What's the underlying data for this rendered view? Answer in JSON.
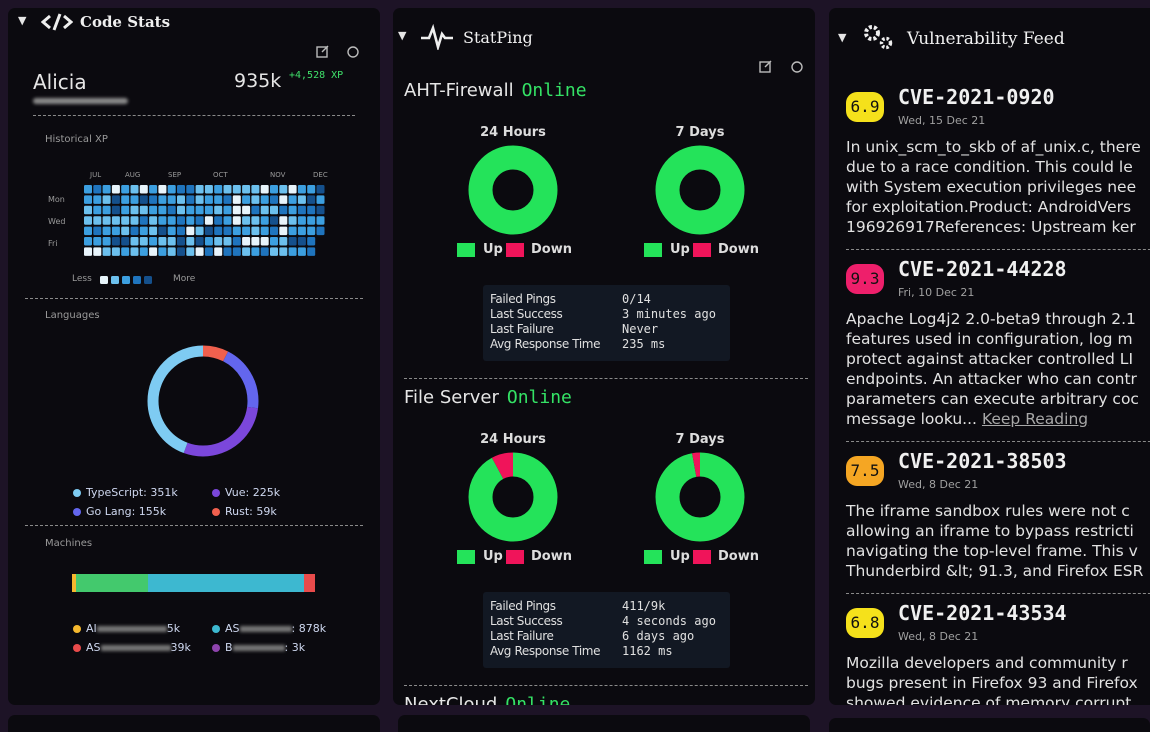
{
  "code_stats": {
    "title": "Code Stats",
    "user": "Alicia",
    "xp": "935k",
    "xp_gain": "+4,528 XP",
    "historical_title": "Historical XP",
    "months": [
      "JUL",
      "AUG",
      "SEP",
      "OCT",
      "NOV",
      "DEC"
    ],
    "days": [
      "Mon",
      "Wed",
      "Fri"
    ],
    "less": "Less",
    "more": "More",
    "languages_title": "Languages",
    "languages": [
      {
        "label": "TypeScript: 351k",
        "value": 351,
        "color": "#7ecbf2"
      },
      {
        "label": "Vue: 225k",
        "value": 225,
        "color": "#7b47db"
      },
      {
        "label": "Go Lang: 155k",
        "value": 155,
        "color": "#6366ee"
      },
      {
        "label": "Rust: 59k",
        "value": 59,
        "color": "#f0604e"
      }
    ],
    "machines_title": "Machines",
    "machines": [
      {
        "prefix": "AI",
        "suffix": "5k",
        "color": "#f5b82e"
      },
      {
        "prefix": "AS",
        "suffix": ": 878k",
        "color": "#3db8d0"
      },
      {
        "prefix": "AS",
        "suffix": "39k",
        "color": "#e94b4b"
      },
      {
        "prefix": "B",
        "suffix": ": 3k",
        "color": "#8e44ad"
      }
    ]
  },
  "statping": {
    "title": "StatPing",
    "legend_up": "Up",
    "legend_down": "Down",
    "up_color": "#24e35a",
    "down_color": "#f0145a",
    "stat_labels": [
      "Failed Pings",
      "Last Success",
      "Last Failure",
      "Avg Response Time"
    ],
    "services": [
      {
        "name": "AHT-Firewall",
        "status": "Online",
        "periods": [
          {
            "label": "24 Hours",
            "up": 100,
            "down": 0
          },
          {
            "label": "7 Days",
            "up": 100,
            "down": 0
          }
        ],
        "stats": [
          "0/14",
          "3 minutes ago",
          "Never",
          "235 ms"
        ]
      },
      {
        "name": "File Server",
        "status": "Online",
        "periods": [
          {
            "label": "24 Hours",
            "up": 92,
            "down": 8
          },
          {
            "label": "7 Days",
            "up": 97,
            "down": 3
          }
        ],
        "stats": [
          "411/9k",
          "4 seconds ago",
          "6 days ago",
          "1162 ms"
        ]
      },
      {
        "name": "NextCloud",
        "status": "Online"
      }
    ]
  },
  "vuln": {
    "title": "Vulnerability Feed",
    "items": [
      {
        "score": "6.9",
        "color": "#f5e11b",
        "id": "CVE-2021-0920",
        "date": "Wed, 15 Dec 21",
        "lines": [
          "In unix_scm_to_skb of af_unix.c, there",
          "due to a race condition. This could le",
          "with System execution privileges nee",
          "for exploitation.Product: AndroidVers",
          "196926917References: Upstream ker"
        ]
      },
      {
        "score": "9.3",
        "color": "#ee1f6b",
        "id": "CVE-2021-44228",
        "date": "Fri, 10 Dec 21",
        "lines": [
          "Apache Log4j2 2.0-beta9 through 2.1",
          "features used in configuration, log m",
          "protect against attacker controlled LI",
          "endpoints. An attacker who can contr",
          "parameters can execute arbitrary coc",
          "message looku..."
        ],
        "link": "Keep Reading"
      },
      {
        "score": "7.5",
        "color": "#f5a623",
        "id": "CVE-2021-38503",
        "date": "Wed, 8 Dec 21",
        "lines": [
          "The iframe sandbox rules were not c",
          "allowing an iframe to bypass restricti",
          "navigating the top-level frame. This v",
          "Thunderbird &lt; 91.3, and Firefox ESR"
        ]
      },
      {
        "score": "6.8",
        "color": "#f5e11b",
        "id": "CVE-2021-43534",
        "date": "Wed, 8 Dec 21",
        "lines": [
          "Mozilla developers and community r",
          "bugs present in Firefox 93 and Firefox",
          "showed evidence of memory corrupt"
        ]
      }
    ]
  }
}
